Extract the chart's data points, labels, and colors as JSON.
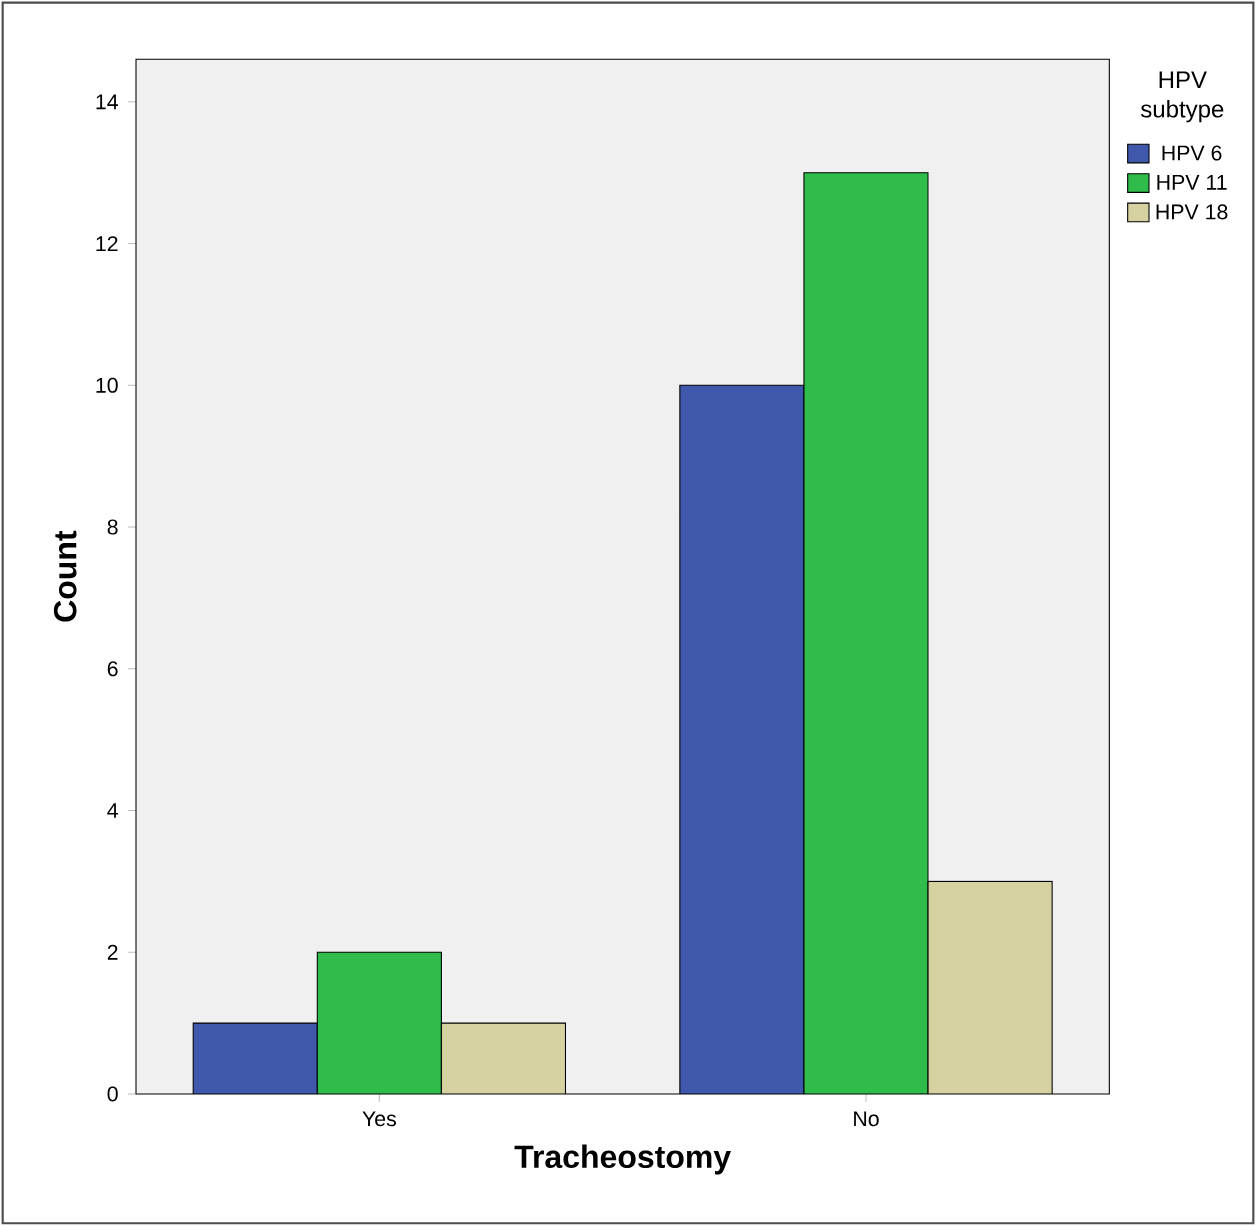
{
  "chart_data": {
    "type": "bar",
    "xlabel": "Tracheostomy",
    "ylabel": "Count",
    "legend_title": "HPV subtype",
    "categories": [
      "Yes",
      "No"
    ],
    "series": [
      {
        "name": "HPV 6",
        "color": "#3f58ab",
        "values": [
          1,
          10
        ]
      },
      {
        "name": "HPV 11",
        "color": "#2fbc4a",
        "values": [
          2,
          13
        ]
      },
      {
        "name": "HPV 18",
        "color": "#d5d1a0",
        "values": [
          1,
          3
        ]
      }
    ],
    "ylim": [
      0,
      14.6
    ],
    "yticks": [
      0,
      2,
      4,
      6,
      8,
      10,
      12,
      14
    ],
    "grid": false,
    "legend": "top right"
  }
}
